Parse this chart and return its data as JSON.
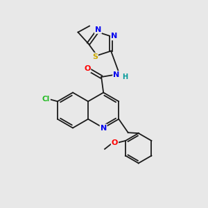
{
  "bg_color": "#e8e8e8",
  "bond_color": "#1a1a1a",
  "colors": {
    "N": "#0000ee",
    "O": "#ff0000",
    "S": "#ccaa00",
    "Cl": "#22bb22",
    "C": "#1a1a1a",
    "H": "#009999"
  }
}
